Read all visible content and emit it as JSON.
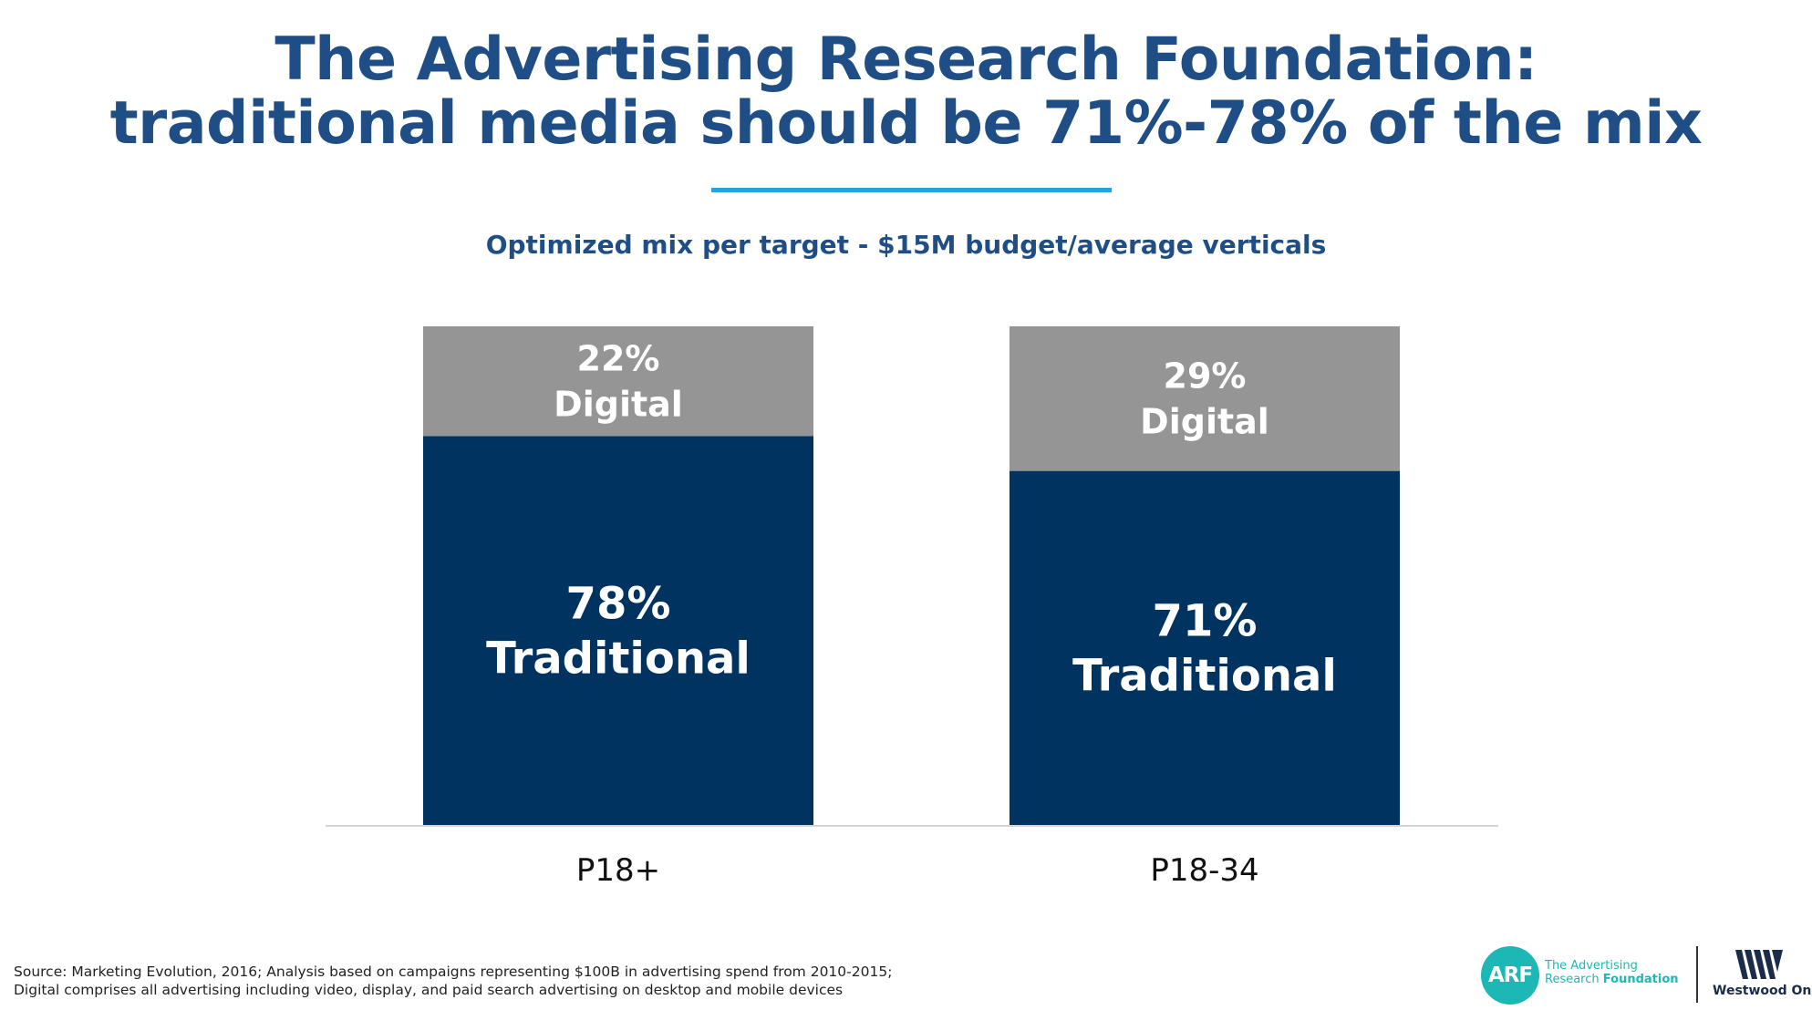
{
  "title_line1": "The Advertising Research Foundation:",
  "title_line2": "traditional media should be 71%-78% of the mix",
  "colors": {
    "title": "#1f4e86",
    "rule": "#27a3d8",
    "traditional": "#003360",
    "digital": "#959595",
    "arf": "#1db8b6"
  },
  "footnote": {
    "line1": "Source: Marketing Evolution, 2016; Analysis based on campaigns representing $100B in advertising spend from 2010-2015;",
    "line2": "Digital comprises all advertising including video, display, and paid search advertising on desktop and mobile devices"
  },
  "logos": {
    "arf_mark": "ARF",
    "arf_line1": "The Advertising",
    "arf_line2a": "Research",
    "arf_line2b": "Foundation",
    "westwood_one": "Westwood One"
  },
  "chart_data": {
    "type": "bar",
    "stacked": true,
    "title": "Optimized mix per target - $15M budget/average verticals",
    "categories": [
      "P18+",
      "P18-34"
    ],
    "ylim": [
      0,
      100
    ],
    "series": [
      {
        "name": "Traditional",
        "values": [
          78,
          71
        ],
        "labels": [
          "78%",
          "71%"
        ],
        "color": "#003360"
      },
      {
        "name": "Digital",
        "values": [
          22,
          29
        ],
        "labels": [
          "22%",
          "29%"
        ],
        "color": "#959595"
      }
    ]
  }
}
